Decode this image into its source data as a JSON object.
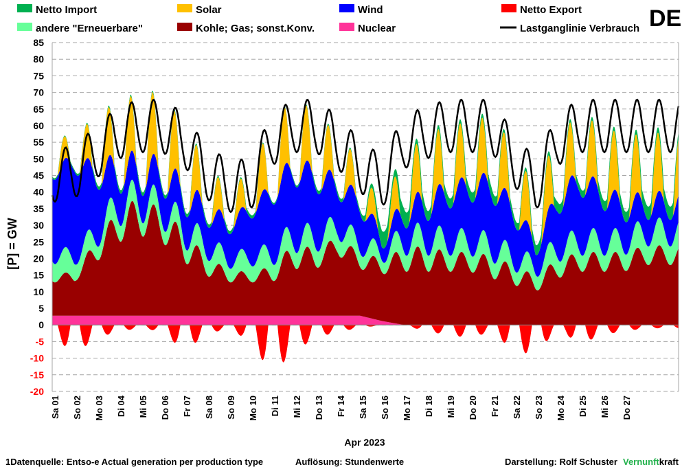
{
  "chart_data": {
    "type": "area",
    "country": "DE",
    "ylabel": "[P]  =  GW",
    "xlabel": "Apr 2023",
    "ylim": [
      -20,
      85
    ],
    "yticks": [
      -20,
      -15,
      -10,
      -5,
      0,
      5,
      10,
      15,
      20,
      25,
      30,
      35,
      40,
      45,
      50,
      55,
      60,
      65,
      70,
      75,
      80,
      85
    ],
    "grid": true,
    "legend": [
      {
        "label": "Netto Import",
        "color": "#00b050",
        "kind": "box"
      },
      {
        "label": "Solar",
        "color": "#ffc000",
        "kind": "box"
      },
      {
        "label": "Wind",
        "color": "#0000ff",
        "kind": "box"
      },
      {
        "label": "Netto Export",
        "color": "#ff0000",
        "kind": "box"
      },
      {
        "label": "andere \"Erneuerbare\"",
        "color": "#66ff99",
        "kind": "box"
      },
      {
        "label": "Kohle; Gas; sonst.Konv.",
        "color": "#990000",
        "kind": "box"
      },
      {
        "label": "Nuclear",
        "color": "#ff3399",
        "kind": "box"
      },
      {
        "label": "Lastganglinie Verbrauch",
        "color": "#000000",
        "kind": "line"
      }
    ],
    "day_labels": [
      "Sa 01",
      "So 02",
      "Mo 03",
      "Di 04",
      "Mi 05",
      "Do 06",
      "Fr 07",
      "Sa 08",
      "So 09",
      "Mo 10",
      "Di 11",
      "Mi 12",
      "Do 13",
      "Fr 14",
      "Sa 15",
      "So 16",
      "Mo 17",
      "Di 18",
      "Mi 19",
      "Do 20",
      "Fr 21",
      "Sa 22",
      "So 23",
      "Mo 24",
      "Di 25",
      "Mi 26",
      "Do 27"
    ],
    "days": 28.5,
    "daily": {
      "nuclear": [
        2.8,
        2.8,
        2.8,
        2.8,
        2.8,
        2.8,
        2.8,
        2.8,
        2.8,
        2.8,
        2.8,
        2.8,
        2.8,
        2.8,
        2.8,
        1.2,
        0,
        0,
        0,
        0,
        0,
        0,
        0,
        0,
        0,
        0,
        0,
        0,
        0
      ],
      "fossil_base": [
        10,
        10,
        16,
        22,
        24,
        22,
        16,
        12,
        10,
        10,
        10,
        14,
        14,
        18,
        14,
        14,
        16,
        16,
        16,
        16,
        14,
        12,
        10,
        14,
        16,
        16,
        16,
        18,
        18
      ],
      "fossil_amp": [
        3,
        3,
        7,
        10,
        12,
        10,
        10,
        6,
        4,
        3,
        5,
        8,
        6,
        6,
        5,
        5,
        7,
        8,
        6,
        6,
        7,
        6,
        5,
        6,
        6,
        6,
        6,
        6,
        6
      ],
      "other": [
        7,
        6,
        5,
        6,
        5,
        5,
        5,
        6,
        5,
        6,
        6,
        6,
        6,
        6,
        5,
        4,
        6,
        6,
        6,
        6,
        6,
        5,
        5,
        6,
        6,
        6,
        6,
        7,
        7
      ],
      "wind": [
        25,
        28,
        18,
        10,
        8,
        10,
        10,
        10,
        10,
        14,
        18,
        20,
        18,
        12,
        12,
        4,
        8,
        10,
        14,
        16,
        18,
        14,
        6,
        14,
        18,
        14,
        10,
        8,
        8
      ],
      "solar": [
        8,
        6,
        14,
        16,
        18,
        20,
        16,
        12,
        8,
        10,
        18,
        18,
        16,
        12,
        10,
        6,
        14,
        16,
        18,
        16,
        18,
        16,
        14,
        18,
        16,
        18,
        18,
        18,
        18
      ],
      "import": [
        0.5,
        0.5,
        1,
        1,
        1,
        1,
        1,
        1,
        1,
        1,
        0.5,
        0.5,
        1,
        1,
        1,
        5,
        5,
        3,
        3,
        3,
        3,
        2,
        3,
        3,
        2,
        3,
        3,
        4,
        4
      ],
      "export": [
        3,
        9,
        4,
        2,
        1,
        2,
        8,
        3,
        1,
        5,
        15,
        8,
        4,
        2,
        1,
        0,
        0,
        2,
        3,
        4,
        2,
        8,
        9,
        1,
        6,
        3,
        2,
        1,
        1
      ],
      "load": [
        47,
        48,
        54,
        60,
        62,
        62,
        58,
        48,
        44,
        44,
        58,
        62,
        62,
        57,
        50,
        45,
        57,
        60,
        62,
        62,
        62,
        52,
        44,
        58,
        62,
        62,
        62,
        62,
        62
      ]
    }
  },
  "footer": {
    "source": "1Datenquelle: Entso-e  Actual generation per production type",
    "resolution": "Auflösung: Stundenwerte",
    "author_prefix": "Darstellung:  Rolf Schuster",
    "brand_green": "Vernunft",
    "brand_black": "kraft",
    "brand_color": "#22b14c"
  }
}
